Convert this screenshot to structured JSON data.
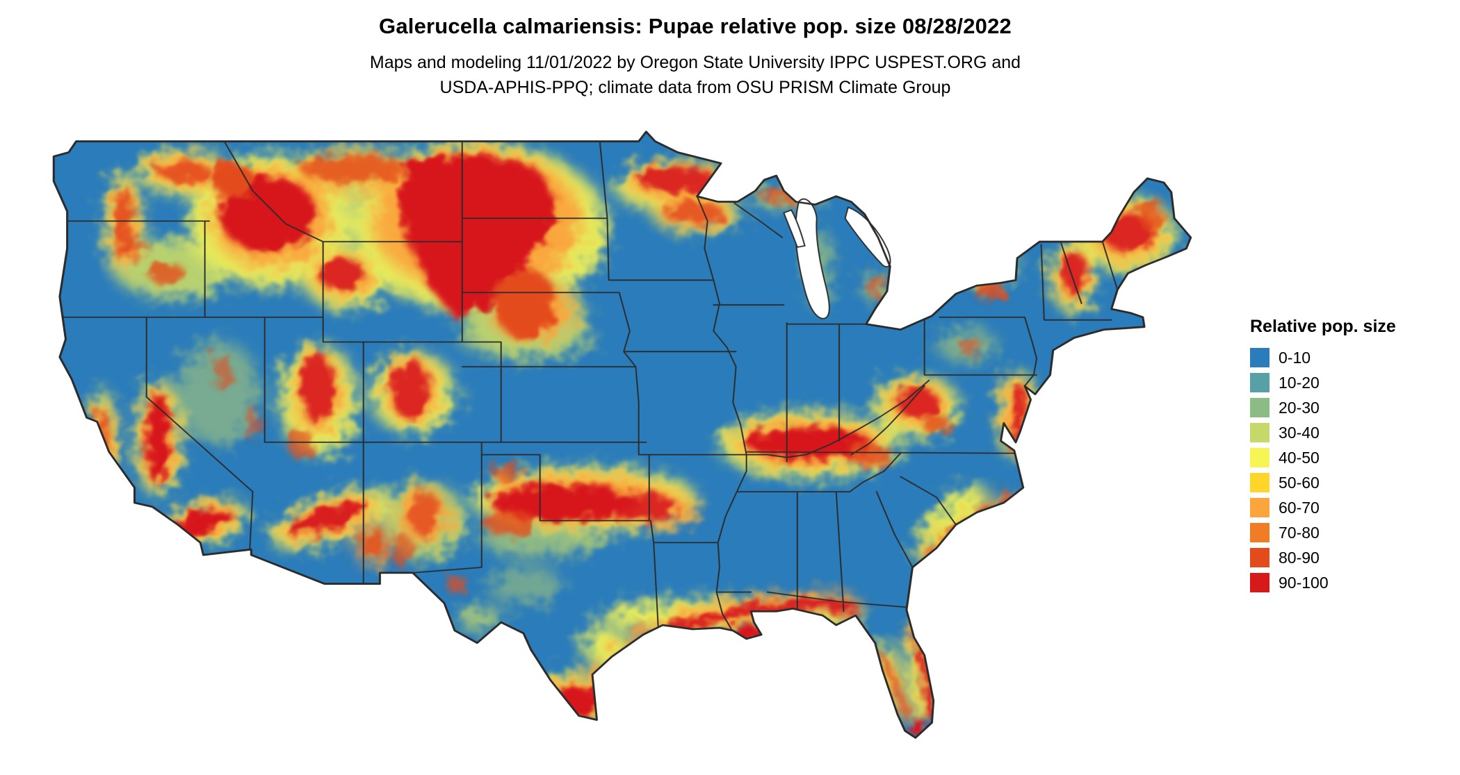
{
  "header": {
    "title": "Galerucella calmariensis: Pupae relative pop. size 08/28/2022",
    "subtitle_line1": "Maps and modeling 11/01/2022 by Oregon State University IPPC USPEST.ORG and",
    "subtitle_line2": "USDA-APHIS-PPQ; climate data from OSU PRISM Climate Group"
  },
  "legend": {
    "title": "Relative pop. size",
    "items": [
      {
        "label": "0-10",
        "color": "#2b7cba"
      },
      {
        "label": "10-20",
        "color": "#58a0a8"
      },
      {
        "label": "20-30",
        "color": "#8bbc86"
      },
      {
        "label": "30-40",
        "color": "#c5d96a"
      },
      {
        "label": "40-50",
        "color": "#f7f554"
      },
      {
        "label": "50-60",
        "color": "#fdd52b"
      },
      {
        "label": "60-70",
        "color": "#fba53c"
      },
      {
        "label": "70-80",
        "color": "#f07c26"
      },
      {
        "label": "80-90",
        "color": "#e34b1c"
      },
      {
        "label": "90-100",
        "color": "#d7191c"
      }
    ]
  },
  "map": {
    "state_border_color": "#2b2b2b",
    "background_color": "#ffffff"
  },
  "chart_data": {
    "type": "heatmap",
    "title": "Galerucella calmariensis: Pupae relative pop. size 08/28/2022",
    "legend_title": "Relative pop. size",
    "bins": [
      "0-10",
      "10-20",
      "20-30",
      "30-40",
      "40-50",
      "50-60",
      "60-70",
      "70-80",
      "80-90",
      "90-100"
    ],
    "bin_colors": [
      "#2b7cba",
      "#58a0a8",
      "#8bbc86",
      "#c5d96a",
      "#f7f554",
      "#fdd52b",
      "#fba53c",
      "#f07c26",
      "#e34b1c",
      "#d7191c"
    ],
    "map_region": "Continental United States",
    "high_value_regions_visible": [
      "Northern Plains (Dakotas into western Minnesota and Nebraska)",
      "Northern Rockies (western Montana, Idaho)",
      "Washington Cascades and northeast Washington",
      "Sierra Nevada, California coast ranges and southern California mountains",
      "Utah and Colorado mountains",
      "Arizona Mogollon Rim and New Mexico highlands",
      "Oklahoma - Arkansas - southern Missouri band",
      "Kentucky - Tennessee band",
      "Gulf Coast strip from south Texas to the Florida panhandle",
      "Florida coasts and southern tip",
      "Mid-Atlantic coast (New Jersey to Virginia)",
      "Carolinas coast",
      "Appalachians (West Virginia / Virginia)",
      "Northern New England (Vermont, New Hampshire, Maine)"
    ],
    "low_value_regions_visible": [
      "Most of the interior Midwest, Great Basin, Texas interior and Southeast shown in the 0-10 (blue) class"
    ]
  }
}
